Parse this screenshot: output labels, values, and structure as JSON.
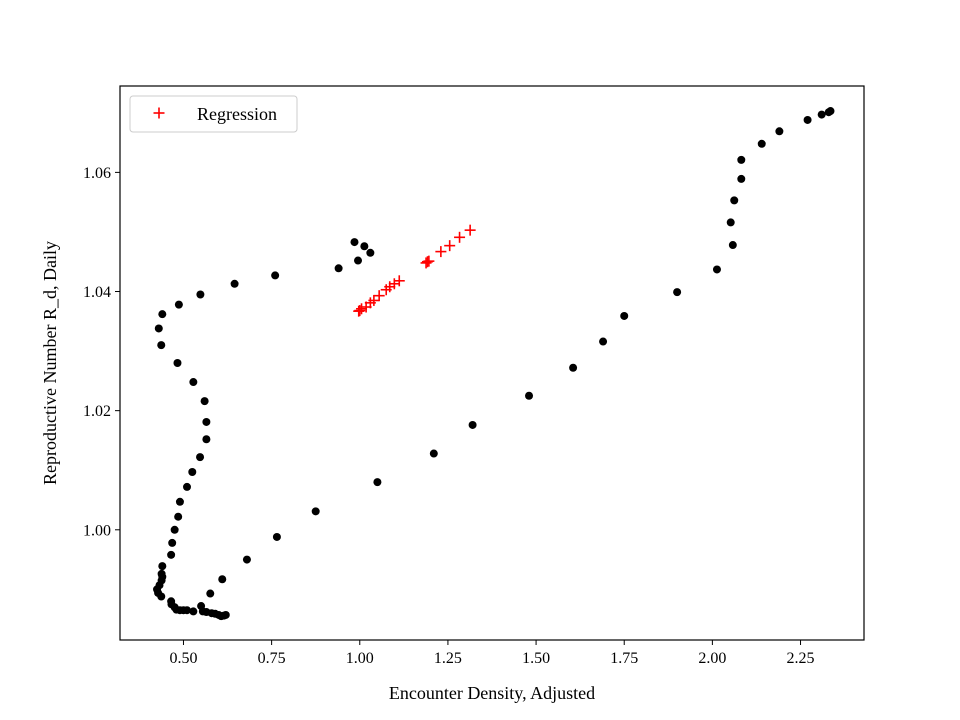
{
  "chart_data": {
    "type": "scatter",
    "title": "",
    "xlabel": "Encounter Density, Adjusted",
    "ylabel": "Reproductive Number R_d, Daily",
    "xlim": [
      0.32,
      2.43
    ],
    "ylim": [
      0.9815,
      1.0745
    ],
    "x_ticks": [
      0.5,
      0.75,
      1.0,
      1.25,
      1.5,
      1.75,
      2.0,
      2.25
    ],
    "x_tick_labels": [
      "0.50",
      "0.75",
      "1.00",
      "1.25",
      "1.50",
      "1.75",
      "2.00",
      "2.25"
    ],
    "y_ticks": [
      1.0,
      1.02,
      1.04,
      1.06
    ],
    "y_tick_labels": [
      "1.00",
      "1.02",
      "1.04",
      "1.06"
    ],
    "grid": false,
    "legend": {
      "position": "top-left",
      "entries": [
        "Regression"
      ]
    },
    "series": [
      {
        "marker": "dot",
        "color": "#000000",
        "points": [
          [
            2.335,
            1.0703
          ],
          [
            2.33,
            1.0701
          ],
          [
            2.31,
            1.0697
          ],
          [
            2.27,
            1.0688
          ],
          [
            2.19,
            1.0669
          ],
          [
            2.14,
            1.0648
          ],
          [
            2.082,
            1.0621
          ],
          [
            2.082,
            1.0589
          ],
          [
            2.062,
            1.0553
          ],
          [
            2.052,
            1.0516
          ],
          [
            2.058,
            1.0478
          ],
          [
            2.013,
            1.0437
          ],
          [
            1.9,
            1.0399
          ],
          [
            1.75,
            1.0359
          ],
          [
            1.69,
            1.0316
          ],
          [
            1.605,
            1.0272
          ],
          [
            1.48,
            1.0225
          ],
          [
            1.32,
            1.0176
          ],
          [
            1.21,
            1.0128
          ],
          [
            1.05,
            1.008
          ],
          [
            0.875,
            1.0031
          ],
          [
            0.765,
            0.9988
          ],
          [
            0.68,
            0.995
          ],
          [
            0.61,
            0.9917
          ],
          [
            0.576,
            0.9893
          ],
          [
            0.62,
            0.9857
          ],
          [
            0.615,
            0.9856
          ],
          [
            0.607,
            0.9855
          ],
          [
            0.6,
            0.9857
          ],
          [
            0.59,
            0.9859
          ],
          [
            0.58,
            0.986
          ],
          [
            0.565,
            0.9862
          ],
          [
            0.555,
            0.9863
          ],
          [
            0.55,
            0.9872
          ],
          [
            0.528,
            0.9863
          ],
          [
            0.51,
            0.9865
          ],
          [
            0.5,
            0.9865
          ],
          [
            0.49,
            0.9865
          ],
          [
            0.48,
            0.9866
          ],
          [
            0.475,
            0.987
          ],
          [
            0.466,
            0.9875
          ],
          [
            0.465,
            0.988
          ],
          [
            0.437,
            0.9888
          ],
          [
            0.428,
            0.9894
          ],
          [
            0.425,
            0.99
          ],
          [
            0.432,
            0.9907
          ],
          [
            0.438,
            0.9915
          ],
          [
            0.44,
            0.9921
          ],
          [
            0.438,
            0.9926
          ],
          [
            0.44,
            0.9939
          ],
          [
            0.465,
            0.9958
          ],
          [
            0.468,
            0.9978
          ],
          [
            0.475,
            1.0
          ],
          [
            0.485,
            1.0022
          ],
          [
            0.49,
            1.0047
          ],
          [
            0.51,
            1.0072
          ],
          [
            0.525,
            1.0097
          ],
          [
            0.547,
            1.0122
          ],
          [
            0.565,
            1.0152
          ],
          [
            0.565,
            1.0181
          ],
          [
            0.56,
            1.0216
          ],
          [
            0.528,
            1.0248
          ],
          [
            0.483,
            1.028
          ],
          [
            0.437,
            1.031
          ],
          [
            0.43,
            1.0338
          ],
          [
            0.44,
            1.0362
          ],
          [
            0.487,
            1.0378
          ],
          [
            0.548,
            1.0395
          ],
          [
            0.645,
            1.0413
          ],
          [
            0.76,
            1.0427
          ],
          [
            0.94,
            1.0439
          ],
          [
            0.995,
            1.0452
          ],
          [
            1.03,
            1.0465
          ],
          [
            1.013,
            1.0476
          ],
          [
            0.985,
            1.0483
          ]
        ]
      },
      {
        "name": "Regression",
        "marker": "plus",
        "color": "#ff0000",
        "points": [
          [
            0.997,
            1.0367
          ],
          [
            1.0,
            1.0368
          ],
          [
            1.005,
            1.0371
          ],
          [
            1.018,
            1.0374
          ],
          [
            1.03,
            1.0381
          ],
          [
            1.04,
            1.0385
          ],
          [
            1.055,
            1.0393
          ],
          [
            1.075,
            1.0403
          ],
          [
            1.085,
            1.0408
          ],
          [
            1.098,
            1.0413
          ],
          [
            1.112,
            1.0418
          ],
          [
            1.188,
            1.0448
          ],
          [
            1.192,
            1.045
          ],
          [
            1.196,
            1.0451
          ],
          [
            1.23,
            1.0467
          ],
          [
            1.255,
            1.0477
          ],
          [
            1.283,
            1.0491
          ],
          [
            1.313,
            1.0503
          ]
        ]
      }
    ]
  }
}
